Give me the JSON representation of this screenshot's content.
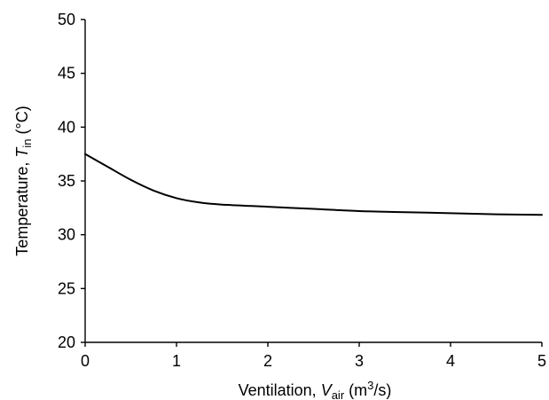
{
  "chart_data": {
    "type": "line",
    "title": "",
    "xlabel": {
      "prefix": "Ventilation, ",
      "symbol": "V",
      "subscript": "air",
      "unit_open": " (m",
      "unit_sup": "3",
      "unit_close": "/s)"
    },
    "ylabel": {
      "prefix": "Temperature, ",
      "symbol": "T",
      "subscript": "in",
      "unit": " (°C)"
    },
    "xlim": [
      0,
      5
    ],
    "ylim": [
      20,
      50
    ],
    "xticks": [
      0,
      1,
      2,
      3,
      4,
      5
    ],
    "yticks": [
      20,
      25,
      30,
      35,
      40,
      45,
      50
    ],
    "xtick_labels": [
      "0",
      "1",
      "2",
      "3",
      "4",
      "5"
    ],
    "ytick_labels": [
      "20",
      "25",
      "30",
      "35",
      "40",
      "45",
      "50"
    ],
    "grid": false,
    "legend": "none",
    "series": [
      {
        "color": "#000000",
        "x": [
          0,
          0.25,
          0.5,
          0.75,
          1.0,
          1.25,
          1.5,
          2.0,
          2.5,
          3.0,
          3.5,
          4.0,
          4.5,
          5.0
        ],
        "y": [
          37.5,
          36.3,
          35.1,
          34.1,
          33.4,
          33.0,
          32.8,
          32.6,
          32.4,
          32.2,
          32.1,
          32.0,
          31.9,
          31.85
        ]
      }
    ]
  }
}
